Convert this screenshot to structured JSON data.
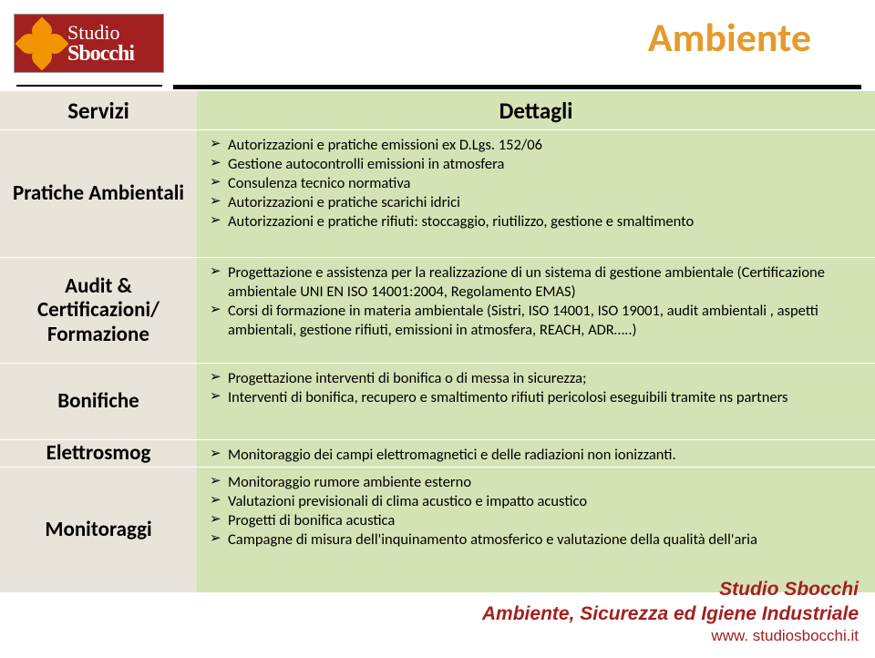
{
  "logo": {
    "line1": "Studio",
    "line2": "Sbocchi"
  },
  "title": "Ambiente",
  "colors": {
    "logo_bg": "#a32020",
    "logo_icon": "#f29400",
    "title_color": "#e59a2b",
    "left_bg": "#e8e4d9",
    "right_bg": "#d4e3b5",
    "footer_color": "#a32020",
    "divider": "#000000"
  },
  "typography": {
    "title_size": 44,
    "left_heading_size": 23,
    "body_size": 16.5,
    "footer_size": 21
  },
  "headers": {
    "left": "Servizi",
    "right": "Dettagli"
  },
  "rows": {
    "r1": {
      "left": "Pratiche Ambientali",
      "b1": "Autorizzazioni e pratiche emissioni ex D.Lgs. 152/06",
      "b2": "Gestione autocontrolli emissioni in atmosfera",
      "b3": "Consulenza tecnico normativa",
      "b4": "Autorizzazioni e pratiche scarichi idrici",
      "b5": "Autorizzazioni e pratiche rifiuti: stoccaggio, riutilizzo, gestione e smaltimento"
    },
    "r2": {
      "left": "Audit & Certificazioni/ Formazione",
      "b1": "Progettazione e assistenza per la realizzazione di un sistema di gestione ambientale (Certificazione ambientale UNI EN ISO 14001:2004, Regolamento EMAS)",
      "b2": "Corsi di formazione in materia ambientale (Sistri, ISO 14001, ISO 19001, audit ambientali , aspetti ambientali,  gestione rifiuti, emissioni in atmosfera, REACH, ADR…..)"
    },
    "r3": {
      "left": "Bonifiche",
      "b1": "Progettazione interventi di bonifica o di messa in sicurezza;",
      "b2": "Interventi di bonifica, recupero e smaltimento rifiuti pericolosi eseguibili  tramite  ns partners"
    },
    "r4": {
      "left": "Elettrosmog",
      "b1": "Monitoraggio dei campi elettromagnetici e delle radiazioni non ionizzanti."
    },
    "r5": {
      "left": "Monitoraggi",
      "b1": "Monitoraggio rumore ambiente esterno",
      "b2": "Valutazioni previsionali di clima acustico  e impatto acustico",
      "b3": "Progetti di bonifica acustica",
      "b4": "Campagne di misura dell'inquinamento atmosferico e valutazione della qualità dell'aria"
    }
  },
  "footer": {
    "l1": "Studio Sbocchi",
    "l2": "Ambiente, Sicurezza ed Igiene Industriale",
    "url": "www. studiosbocchi.it"
  }
}
